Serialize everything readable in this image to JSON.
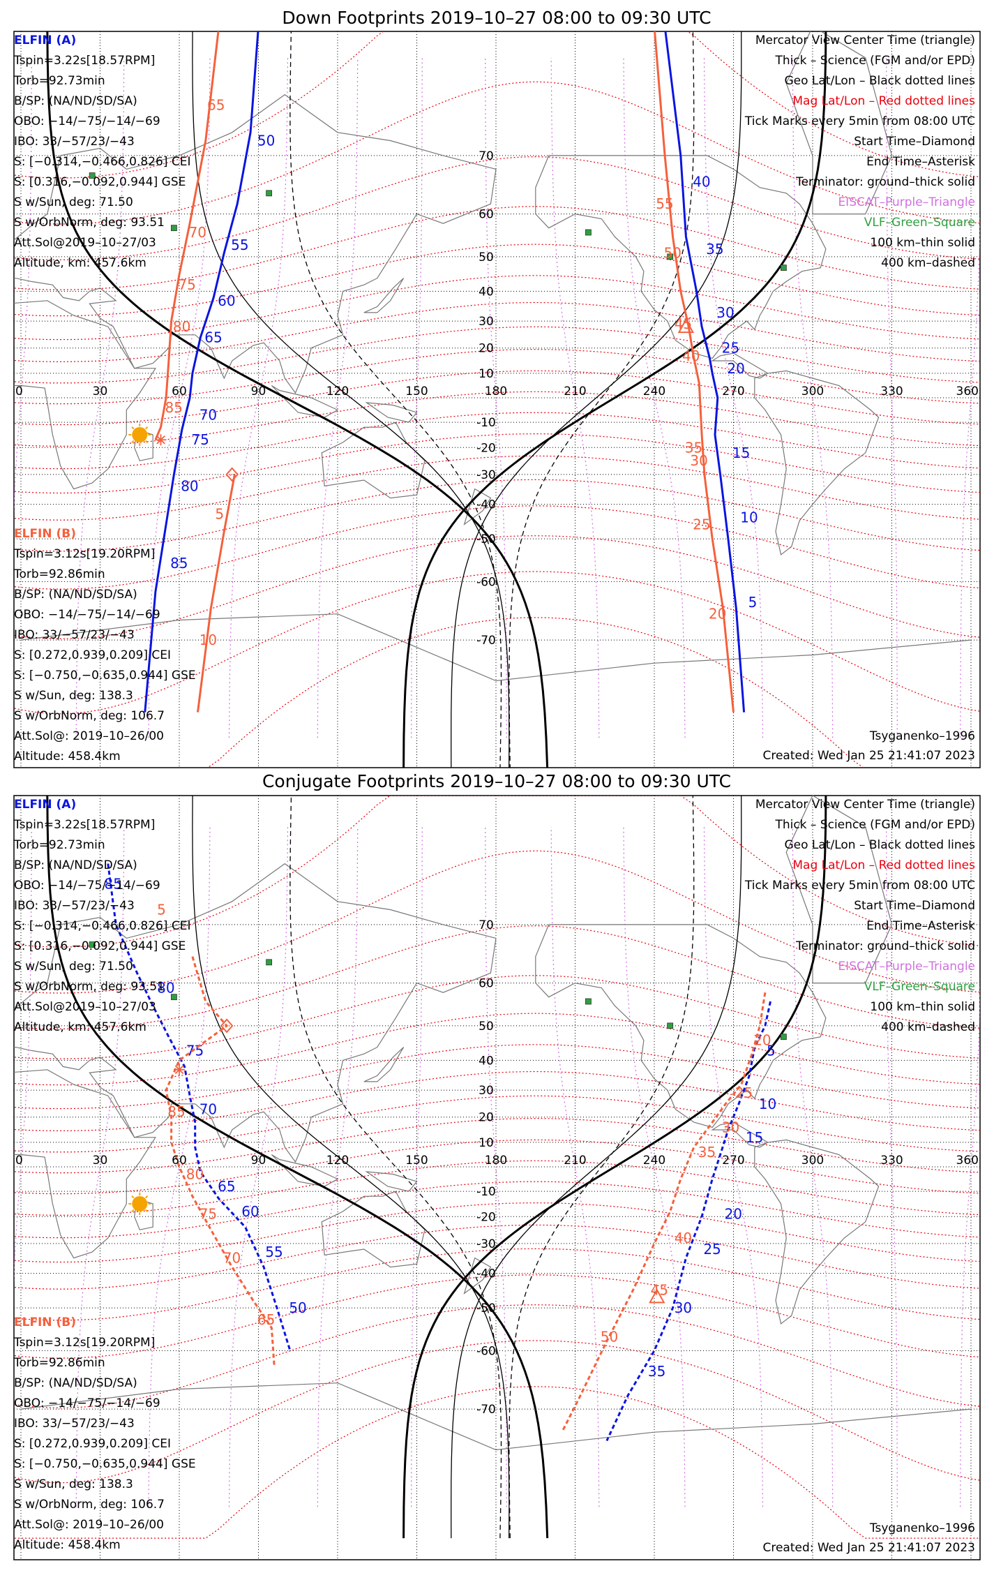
{
  "colors": {
    "elfin_a": "#0a14e0",
    "elfin_b": "#f4603c",
    "mag_grid": "#e8000d",
    "eiscat": "#d070e0",
    "vlf": "#2ea040",
    "geo_grid": "#000000",
    "sun": "#f5a300"
  },
  "legend_lines": [
    {
      "text": "Mercator View Center Time (triangle)",
      "color": "#000000"
    },
    {
      "text": "Thick – Science (FGM and/or EPD)",
      "color": "#000000"
    },
    {
      "text": "Geo Lat/Lon – Black dotted lines",
      "color": "#000000"
    },
    {
      "text": "Mag Lat/Lon – Red dotted lines",
      "color": "#e8000d"
    },
    {
      "text": "Tick Marks every 5min from 08:00 UTC",
      "color": "#000000"
    },
    {
      "text": "Start Time–Diamond",
      "color": "#000000"
    },
    {
      "text": "End Time–Asterisk",
      "color": "#000000"
    },
    {
      "text": "Terminator: ground–thick solid",
      "color": "#000000"
    },
    {
      "text": "EISCAT–Purple–Triangle",
      "color": "#d070e0"
    },
    {
      "text": "VLF–Green–Square",
      "color": "#2ea040"
    },
    {
      "text": "100 km–thin solid",
      "color": "#000000"
    },
    {
      "text": "400 km–dashed",
      "color": "#000000"
    }
  ],
  "elfin_a": {
    "title": "ELFIN (A)",
    "lines": [
      "Tspin=3.22s[18.57RPM]",
      "Torb=92.73min",
      "B/SP: (NA/ND/SD/SA)",
      "OBO: −14/−75/−14/−69",
      "IBO: 33/−57/23/−43",
      "S: [−0.314,−0.466,0.826] CEI",
      "S: [0.316,−0.092,0.944] GSE",
      "S w/Sun, deg: 71.50",
      "S w/OrbNorm, deg: 93.51",
      "Att.Sol@2019–10–27/03",
      "Altitude, km: 457.6km"
    ]
  },
  "elfin_b": {
    "title": "ELFIN (B)",
    "lines": [
      "Tspin=3.12s[19.20RPM]",
      "Torb=92.86min",
      "B/SP: (NA/ND/SD/SA)",
      "OBO: −14/−75/−14/−69",
      "IBO: 33/−57/23/−43",
      "S: [0.272,0.939,0.209] CEI",
      "S: [−0.750,−0.635,0.944] GSE",
      "S w/Sun, deg: 138.3",
      "S w/OrbNorm, deg: 106.7",
      "Att.Sol@: 2019–10–26/00",
      "Altitude: 458.4km"
    ]
  },
  "model": "Tsyganenko–1996",
  "created": "Created: Wed Jan 25 21:41:07 2023",
  "axes": {
    "lon_ticks": [
      0,
      30,
      60,
      90,
      120,
      150,
      180,
      210,
      240,
      270,
      300,
      330,
      360
    ],
    "lat_ticks": [
      70,
      60,
      50,
      40,
      30,
      20,
      10,
      -10,
      -20,
      -30,
      -40,
      -50,
      -60,
      -70
    ]
  },
  "panels": [
    {
      "title": "Down Footprints 2019–10–27 08:00 to 09:30 UTC",
      "sun": {
        "lon": 45,
        "lat": -15
      },
      "vlf_sites": [
        [
          27,
          67
        ],
        [
          94,
          64
        ],
        [
          58,
          57
        ],
        [
          215,
          56
        ],
        [
          246,
          50
        ],
        [
          289,
          47
        ]
      ],
      "elfin_a_track": {
        "style": "solid",
        "points": [
          [
            90,
            82
          ],
          [
            87,
            73
          ],
          [
            82,
            62
          ],
          [
            77,
            51
          ],
          [
            73,
            38
          ],
          [
            68,
            24
          ],
          [
            65,
            10
          ],
          [
            64,
            0
          ],
          [
            61,
            -13
          ],
          [
            58,
            -30
          ],
          [
            55,
            -46
          ],
          [
            51,
            -62
          ],
          [
            47,
            -78
          ]
        ],
        "labels": [
          {
            "text": "50",
            "lon": 88,
            "lat": 72
          },
          {
            "text": "55",
            "lon": 78,
            "lat": 53
          },
          {
            "text": "60",
            "lon": 73,
            "lat": 37
          },
          {
            "text": "65",
            "lon": 68,
            "lat": 24
          },
          {
            "text": "70",
            "lon": 66,
            "lat": -7
          },
          {
            "text": "75",
            "lon": 63,
            "lat": -17
          },
          {
            "text": "80",
            "lon": 59,
            "lat": -34
          },
          {
            "text": "85",
            "lon": 55,
            "lat": -56
          }
        ]
      },
      "elfin_b_track": {
        "style": "solid",
        "points": [
          [
            75,
            82
          ],
          [
            70,
            72
          ],
          [
            64,
            58
          ],
          [
            60,
            45
          ],
          [
            57,
            30
          ],
          [
            56,
            15
          ],
          [
            55,
            0
          ],
          [
            53,
            -12
          ],
          [
            51,
            -17
          ]
        ],
        "labels": [
          {
            "text": "65",
            "lon": 69,
            "lat": 76
          },
          {
            "text": "70",
            "lon": 62,
            "lat": 56
          },
          {
            "text": "75",
            "lon": 58,
            "lat": 42
          },
          {
            "text": "80",
            "lon": 56,
            "lat": 28
          },
          {
            "text": "85",
            "lon": 53,
            "lat": -4
          }
        ]
      },
      "elfin_b_track2": {
        "style": "solid",
        "points": [
          [
            81,
            -30
          ],
          [
            77,
            -48
          ],
          [
            72,
            -65
          ],
          [
            67,
            -78
          ]
        ],
        "labels": [
          {
            "text": "5",
            "lon": 72,
            "lat": -43
          },
          {
            "text": "10",
            "lon": 66,
            "lat": -70
          }
        ]
      },
      "elfin_a_track_right": {
        "style": "solid",
        "points": [
          [
            244,
            82
          ],
          [
            250,
            70
          ],
          [
            252,
            55
          ],
          [
            256,
            40
          ],
          [
            258,
            28
          ],
          [
            261,
            16
          ],
          [
            262,
            10
          ],
          [
            264,
            0
          ],
          [
            263,
            -15
          ],
          [
            265,
            -30
          ],
          [
            268,
            -50
          ],
          [
            271,
            -65
          ],
          [
            274,
            -78
          ]
        ],
        "labels": [
          {
            "text": "40",
            "lon": 253,
            "lat": 66
          },
          {
            "text": "35",
            "lon": 258,
            "lat": 52
          },
          {
            "text": "30",
            "lon": 262,
            "lat": 33
          },
          {
            "text": "25",
            "lon": 264,
            "lat": 20
          },
          {
            "text": "20",
            "lon": 266,
            "lat": 12
          },
          {
            "text": "15",
            "lon": 268,
            "lat": -22
          },
          {
            "text": "10",
            "lon": 271,
            "lat": -44
          },
          {
            "text": "5",
            "lon": 274,
            "lat": -64
          }
        ]
      },
      "elfin_b_track_right": {
        "style": "solid",
        "points": [
          [
            240,
            82
          ],
          [
            244,
            70
          ],
          [
            247,
            55
          ],
          [
            250,
            40
          ],
          [
            253,
            28
          ],
          [
            255,
            16
          ],
          [
            257,
            6
          ],
          [
            258,
            -15
          ],
          [
            259,
            -30
          ],
          [
            262,
            -50
          ],
          [
            266,
            -65
          ],
          [
            270,
            -78
          ]
        ],
        "labels": [
          {
            "text": "55",
            "lon": 239,
            "lat": 62
          },
          {
            "text": "50",
            "lon": 242,
            "lat": 51
          },
          {
            "text": "45",
            "lon": 246,
            "lat": 29
          },
          {
            "text": "40",
            "lon": 249,
            "lat": 17
          },
          {
            "text": "35",
            "lon": 250,
            "lat": -20
          },
          {
            "text": "30",
            "lon": 252,
            "lat": -25
          },
          {
            "text": "25",
            "lon": 253,
            "lat": -46
          },
          {
            "text": "20",
            "lon": 259,
            "lat": -66
          }
        ]
      },
      "start_diamond": {
        "lon": 80,
        "lat": -30
      },
      "end_asterisk": {
        "lon": 53,
        "lat": -17
      },
      "mid_triangle": {
        "lon": 252,
        "lat": 28
      }
    },
    {
      "title": "Conjugate Footprints 2019–10–27 08:00 to 09:30 UTC",
      "sun": {
        "lon": 45,
        "lat": -15
      },
      "vlf_sites": [
        [
          27,
          67
        ],
        [
          94,
          64
        ],
        [
          58,
          57
        ],
        [
          215,
          56
        ],
        [
          246,
          50
        ],
        [
          289,
          47
        ]
      ],
      "elfin_a_track": {
        "style": "dashed",
        "points": [
          [
            33,
            77
          ],
          [
            36,
            70
          ],
          [
            44,
            62
          ],
          [
            50,
            55
          ],
          [
            56,
            47
          ],
          [
            62,
            38
          ],
          [
            64,
            28
          ],
          [
            66,
            18
          ],
          [
            66,
            8
          ],
          [
            68,
            -2
          ],
          [
            75,
            -13
          ],
          [
            85,
            -24
          ],
          [
            92,
            -38
          ],
          [
            97,
            -50
          ],
          [
            102,
            -60
          ]
        ],
        "labels": [
          {
            "text": "85",
            "lon": 30,
            "lat": 75
          },
          {
            "text": "80",
            "lon": 50,
            "lat": 59
          },
          {
            "text": "75",
            "lon": 61,
            "lat": 43
          },
          {
            "text": "70",
            "lon": 66,
            "lat": 23
          },
          {
            "text": "65",
            "lon": 73,
            "lat": -8
          },
          {
            "text": "60",
            "lon": 82,
            "lat": -18
          },
          {
            "text": "55",
            "lon": 91,
            "lat": -33
          },
          {
            "text": "50",
            "lon": 100,
            "lat": -50
          }
        ]
      },
      "elfin_b_track": {
        "style": "dashed",
        "points": [
          [
            65,
            65
          ],
          [
            70,
            56
          ],
          [
            78,
            50
          ],
          [
            60,
            40
          ],
          [
            55,
            30
          ],
          [
            57,
            20
          ],
          [
            57,
            10
          ],
          [
            60,
            0
          ],
          [
            65,
            -12
          ],
          [
            72,
            -25
          ],
          [
            80,
            -38
          ],
          [
            88,
            -48
          ],
          [
            95,
            -55
          ],
          [
            96,
            -63
          ]
        ],
        "labels": [
          {
            "text": "5",
            "lon": 50,
            "lat": 72
          },
          {
            "text": "85",
            "lon": 54,
            "lat": 22
          },
          {
            "text": "80",
            "lon": 61,
            "lat": -3
          },
          {
            "text": "75",
            "lon": 66,
            "lat": -19
          },
          {
            "text": "70",
            "lon": 75,
            "lat": -35
          },
          {
            "text": "65",
            "lon": 88,
            "lat": -53
          }
        ]
      },
      "elfin_b_track2": {
        "style": "dashed",
        "points": [],
        "labels": []
      },
      "elfin_a_track_right": {
        "style": "dashed",
        "points": [
          [
            284,
            56
          ],
          [
            282,
            50
          ],
          [
            278,
            44
          ],
          [
            276,
            35
          ],
          [
            272,
            25
          ],
          [
            268,
            15
          ],
          [
            265,
            5
          ],
          [
            262,
            -5
          ],
          [
            258,
            -20
          ],
          [
            252,
            -35
          ],
          [
            247,
            -50
          ],
          [
            240,
            -60
          ],
          [
            230,
            -68
          ],
          [
            222,
            -74
          ]
        ],
        "labels": [
          {
            "text": "5",
            "lon": 281,
            "lat": 43
          },
          {
            "text": "10",
            "lon": 278,
            "lat": 25
          },
          {
            "text": "15",
            "lon": 273,
            "lat": 12
          },
          {
            "text": "20",
            "lon": 265,
            "lat": -19
          },
          {
            "text": "25",
            "lon": 257,
            "lat": -32
          },
          {
            "text": "30",
            "lon": 246,
            "lat": -50
          },
          {
            "text": "35",
            "lon": 236,
            "lat": -64
          }
        ]
      },
      "elfin_b_track_right": {
        "style": "dashed",
        "points": [
          [
            282,
            58
          ],
          [
            280,
            50
          ],
          [
            277,
            42
          ],
          [
            273,
            32
          ],
          [
            267,
            25
          ],
          [
            262,
            18
          ],
          [
            255,
            8
          ],
          [
            250,
            -5
          ],
          [
            246,
            -18
          ],
          [
            240,
            -30
          ],
          [
            232,
            -45
          ],
          [
            222,
            -58
          ],
          [
            212,
            -68
          ],
          [
            205,
            -73
          ]
        ],
        "labels": [
          {
            "text": "20",
            "lon": 276,
            "lat": 46
          },
          {
            "text": "25",
            "lon": 269,
            "lat": 29
          },
          {
            "text": "30",
            "lon": 264,
            "lat": 16
          },
          {
            "text": "35",
            "lon": 255,
            "lat": 6
          },
          {
            "text": "40",
            "lon": 246,
            "lat": -28
          },
          {
            "text": "45",
            "lon": 237,
            "lat": -45
          },
          {
            "text": "50",
            "lon": 218,
            "lat": -57
          }
        ]
      },
      "start_diamond": {
        "lon": 78,
        "lat": 50
      },
      "end_asterisk": {
        "lon": 60,
        "lat": 37
      },
      "mid_triangle": {
        "lon": 241,
        "lat": -47
      }
    }
  ]
}
